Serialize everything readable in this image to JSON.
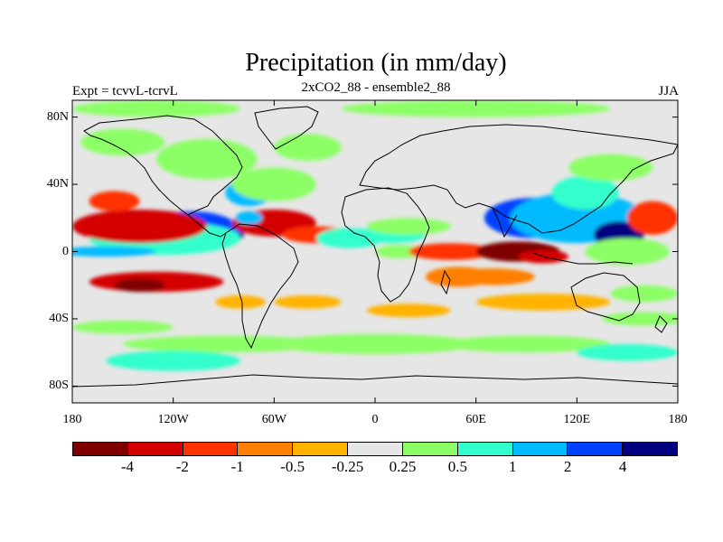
{
  "title": "Precipitation (in mm/day)",
  "subtitle": "2xCO2_88 - ensemble2_88",
  "experiment_label": "Expt = tcvvL-tcrvL",
  "season_label": "JJA",
  "map": {
    "projection": "cylindrical equidistant",
    "lon_range": [
      -180,
      180
    ],
    "lat_range": [
      -90,
      90
    ],
    "lat_ticks": [
      {
        "value": 80,
        "label": "80N"
      },
      {
        "value": 40,
        "label": "40N"
      },
      {
        "value": 0,
        "label": "0"
      },
      {
        "value": -40,
        "label": "40S"
      },
      {
        "value": -80,
        "label": "80S"
      }
    ],
    "lon_ticks": [
      {
        "value": -180,
        "label": "180"
      },
      {
        "value": -120,
        "label": "120W"
      },
      {
        "value": -60,
        "label": "60W"
      },
      {
        "value": 0,
        "label": "0"
      },
      {
        "value": 60,
        "label": "60E"
      },
      {
        "value": 120,
        "label": "120E"
      },
      {
        "value": 180,
        "label": "180"
      }
    ],
    "background_color": "#e6e6e6",
    "fields": [
      {
        "lon": -100,
        "lat": 10,
        "rx": 22,
        "ry": 6,
        "level": 10
      },
      {
        "lon": -110,
        "lat": 12,
        "rx": 30,
        "ry": 12,
        "level": 9
      },
      {
        "lon": -125,
        "lat": 8,
        "rx": 45,
        "ry": 10,
        "level": 7
      },
      {
        "lon": -140,
        "lat": 15,
        "rx": 40,
        "ry": 10,
        "level": 1
      },
      {
        "lon": -155,
        "lat": 30,
        "rx": 15,
        "ry": 6,
        "level": 2
      },
      {
        "lon": -60,
        "lat": 17,
        "rx": 25,
        "ry": 8,
        "level": 1
      },
      {
        "lon": -35,
        "lat": 10,
        "rx": 20,
        "ry": 5,
        "level": 2
      },
      {
        "lon": -75,
        "lat": 20,
        "rx": 8,
        "ry": 4,
        "level": 8
      },
      {
        "lon": -160,
        "lat": 0,
        "rx": 30,
        "ry": 3,
        "level": 8
      },
      {
        "lon": -130,
        "lat": -18,
        "rx": 40,
        "ry": 6,
        "level": 1
      },
      {
        "lon": -140,
        "lat": -20,
        "rx": 15,
        "ry": 4,
        "level": 0
      },
      {
        "lon": -75,
        "lat": 35,
        "rx": 14,
        "ry": 8,
        "level": 8
      },
      {
        "lon": -60,
        "lat": 40,
        "rx": 25,
        "ry": 10,
        "level": 6
      },
      {
        "lon": -100,
        "lat": 55,
        "rx": 30,
        "ry": 12,
        "level": 6
      },
      {
        "lon": -150,
        "lat": 65,
        "rx": 25,
        "ry": 8,
        "level": 6
      },
      {
        "lon": -40,
        "lat": 62,
        "rx": 20,
        "ry": 8,
        "level": 6
      },
      {
        "lon": -15,
        "lat": 8,
        "rx": 20,
        "ry": 6,
        "level": 7
      },
      {
        "lon": 10,
        "lat": 10,
        "rx": 20,
        "ry": 5,
        "level": 7
      },
      {
        "lon": 20,
        "lat": 15,
        "rx": 25,
        "ry": 5,
        "level": 6
      },
      {
        "lon": 15,
        "lat": 0,
        "rx": 15,
        "ry": 4,
        "level": 6
      },
      {
        "lon": 45,
        "lat": 0,
        "rx": 25,
        "ry": 5,
        "level": 2
      },
      {
        "lon": 50,
        "lat": -15,
        "rx": 20,
        "ry": 6,
        "level": 3
      },
      {
        "lon": 70,
        "lat": -15,
        "rx": 25,
        "ry": 5,
        "level": 3
      },
      {
        "lon": 85,
        "lat": 0,
        "rx": 25,
        "ry": 6,
        "level": 0
      },
      {
        "lon": 100,
        "lat": -3,
        "rx": 15,
        "ry": 4,
        "level": 1
      },
      {
        "lon": 95,
        "lat": 20,
        "rx": 30,
        "ry": 12,
        "level": 9
      },
      {
        "lon": 120,
        "lat": 20,
        "rx": 40,
        "ry": 15,
        "level": 8
      },
      {
        "lon": 145,
        "lat": 10,
        "rx": 15,
        "ry": 8,
        "level": 10
      },
      {
        "lon": 125,
        "lat": 35,
        "rx": 20,
        "ry": 10,
        "level": 7
      },
      {
        "lon": 165,
        "lat": 20,
        "rx": 15,
        "ry": 10,
        "level": 2
      },
      {
        "lon": 150,
        "lat": 0,
        "rx": 25,
        "ry": 8,
        "level": 6
      },
      {
        "lon": 140,
        "lat": 50,
        "rx": 25,
        "ry": 8,
        "level": 6
      },
      {
        "lon": 100,
        "lat": -30,
        "rx": 40,
        "ry": 5,
        "level": 4
      },
      {
        "lon": 160,
        "lat": -25,
        "rx": 20,
        "ry": 5,
        "level": 6
      },
      {
        "lon": 160,
        "lat": -40,
        "rx": 25,
        "ry": 4,
        "level": 6
      },
      {
        "lon": 0,
        "lat": -55,
        "rx": 60,
        "ry": 6,
        "level": 6
      },
      {
        "lon": -90,
        "lat": -55,
        "rx": 60,
        "ry": 5,
        "level": 6
      },
      {
        "lon": -120,
        "lat": -65,
        "rx": 40,
        "ry": 6,
        "level": 7
      },
      {
        "lon": 90,
        "lat": -55,
        "rx": 50,
        "ry": 5,
        "level": 6
      },
      {
        "lon": 150,
        "lat": -60,
        "rx": 30,
        "ry": 5,
        "level": 7
      },
      {
        "lon": -150,
        "lat": -45,
        "rx": 30,
        "ry": 4,
        "level": 6
      },
      {
        "lon": 20,
        "lat": -35,
        "rx": 25,
        "ry": 4,
        "level": 4
      },
      {
        "lon": -40,
        "lat": -30,
        "rx": 20,
        "ry": 4,
        "level": 4
      },
      {
        "lon": -80,
        "lat": -30,
        "rx": 15,
        "ry": 4,
        "level": 4
      },
      {
        "lon": -130,
        "lat": 85,
        "rx": 50,
        "ry": 5,
        "level": 6
      },
      {
        "lon": 60,
        "lat": 85,
        "rx": 80,
        "ry": 5,
        "level": 6
      }
    ]
  },
  "colorbar": {
    "colors": [
      "#800000",
      "#d40000",
      "#ff3300",
      "#ff7f00",
      "#ffb300",
      "#e6e6e6",
      "#8cff66",
      "#33ffcc",
      "#00bbff",
      "#0040ff",
      "#000080"
    ],
    "labels": [
      "-4",
      "-2",
      "-1",
      "-0.5",
      "-0.25",
      "0.25",
      "0.5",
      "1",
      "2",
      "4"
    ]
  }
}
